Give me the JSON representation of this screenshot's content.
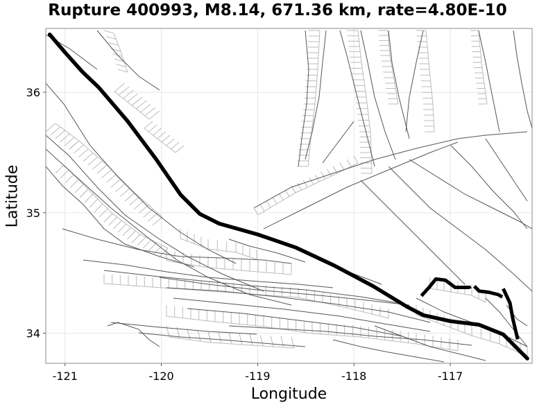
{
  "chart_data": {
    "type": "map",
    "title": "Rupture 400993, M8.14, 671.36 km, rate=4.80E-10",
    "xlabel": "Longitude",
    "ylabel": "Latitude",
    "xlim": [
      -121.2,
      -116.15
    ],
    "ylim": [
      33.75,
      36.53
    ],
    "x_ticks": [
      -121,
      -120,
      -119,
      -118,
      -117
    ],
    "y_ticks": [
      34,
      35,
      36
    ],
    "x_tick_labels": [
      "-121",
      "-120",
      "-119",
      "-118",
      "-117"
    ],
    "y_tick_labels": [
      "34",
      "35",
      "36"
    ],
    "grid": true,
    "colors": {
      "rupture": "#000000",
      "fault": "#555555",
      "surface": "#bbbbbb",
      "frame": "#888888"
    },
    "rupture_trace": [
      [
        -121.16,
        36.48
      ],
      [
        -121.0,
        36.33
      ],
      [
        -120.82,
        36.17
      ],
      [
        -120.65,
        36.04
      ],
      [
        -120.35,
        35.76
      ],
      [
        -120.05,
        35.44
      ],
      [
        -119.8,
        35.15
      ],
      [
        -119.6,
        34.99
      ],
      [
        -119.4,
        34.91
      ],
      [
        -119.0,
        34.82
      ],
      [
        -118.6,
        34.71
      ],
      [
        -118.2,
        34.56
      ],
      [
        -117.8,
        34.39
      ],
      [
        -117.45,
        34.22
      ],
      [
        -117.28,
        34.15
      ],
      [
        -117.0,
        34.1
      ],
      [
        -116.7,
        34.07
      ],
      [
        -116.45,
        33.99
      ],
      [
        -116.2,
        33.79
      ]
    ],
    "rupture_branches": [
      [
        [
          -117.3,
          34.31
        ],
        [
          -117.22,
          34.38
        ],
        [
          -117.15,
          34.45
        ],
        [
          -117.05,
          34.44
        ],
        [
          -116.95,
          34.38
        ],
        [
          -116.8,
          34.38
        ],
        [
          -116.8,
          34.37
        ]
      ],
      [
        [
          -116.75,
          34.39
        ],
        [
          -116.7,
          34.35
        ],
        [
          -116.6,
          34.34
        ],
        [
          -116.5,
          34.32
        ],
        [
          -116.46,
          34.3
        ]
      ],
      [
        [
          -116.45,
          34.37
        ],
        [
          -116.38,
          34.25
        ],
        [
          -116.35,
          34.12
        ],
        [
          -116.3,
          33.95
        ]
      ]
    ]
  }
}
